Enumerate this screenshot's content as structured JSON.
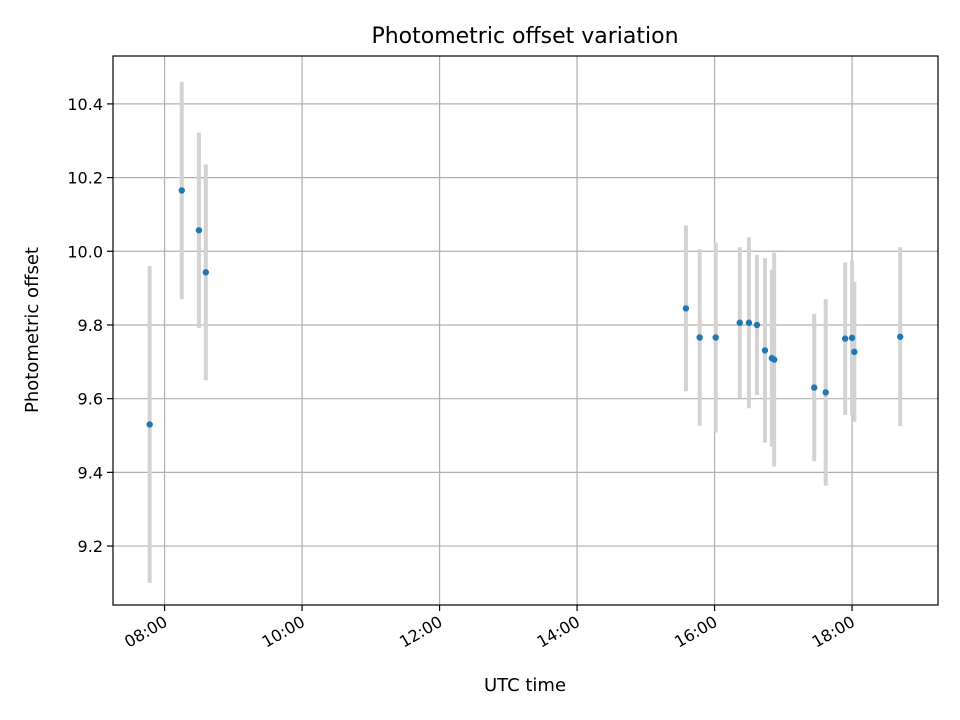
{
  "chart_data": {
    "type": "scatter",
    "title": "Photometric offset variation",
    "xlabel": "UTC time",
    "ylabel": "Photometric offset",
    "x_unit": "hours UTC",
    "xlim": [
      "07:15",
      "19:15"
    ],
    "ylim": [
      9.04,
      10.53
    ],
    "x_ticks": [
      "08:00",
      "10:00",
      "12:00",
      "14:00",
      "16:00",
      "18:00"
    ],
    "y_ticks": [
      9.2,
      9.4,
      9.6,
      9.8,
      10.0,
      10.2,
      10.4
    ],
    "y_tick_labels": [
      "9.2",
      "9.4",
      "9.6",
      "9.8",
      "10.0",
      "10.2",
      "10.4"
    ],
    "grid": true,
    "marker_color": "#1f77b4",
    "errorbar_color": "#d3d3d3",
    "series": [
      {
        "points": [
          {
            "x": "07:47",
            "y": 9.53,
            "err": 0.43
          },
          {
            "x": "08:15",
            "y": 10.165,
            "err": 0.295
          },
          {
            "x": "08:30",
            "y": 10.057,
            "err": 0.265
          },
          {
            "x": "08:36",
            "y": 9.943,
            "err": 0.293
          },
          {
            "x": "15:35",
            "y": 9.845,
            "err": 0.225
          },
          {
            "x": "15:47",
            "y": 9.766,
            "err": 0.24
          },
          {
            "x": "16:01",
            "y": 9.766,
            "err": 0.258
          },
          {
            "x": "16:22",
            "y": 9.806,
            "err": 0.205
          },
          {
            "x": "16:30",
            "y": 9.806,
            "err": 0.232
          },
          {
            "x": "16:37",
            "y": 9.8,
            "err": 0.19
          },
          {
            "x": "16:44",
            "y": 9.731,
            "err": 0.25
          },
          {
            "x": "16:50",
            "y": 9.71,
            "err": 0.24
          },
          {
            "x": "16:52",
            "y": 9.706,
            "err": 0.29
          },
          {
            "x": "17:27",
            "y": 9.63,
            "err": 0.2
          },
          {
            "x": "17:37",
            "y": 9.617,
            "err": 0.253
          },
          {
            "x": "17:54",
            "y": 9.763,
            "err": 0.207
          },
          {
            "x": "18:00",
            "y": 9.765,
            "err": 0.21
          },
          {
            "x": "18:02",
            "y": 9.727,
            "err": 0.19
          },
          {
            "x": "18:42",
            "y": 9.768,
            "err": 0.243
          }
        ]
      }
    ]
  }
}
